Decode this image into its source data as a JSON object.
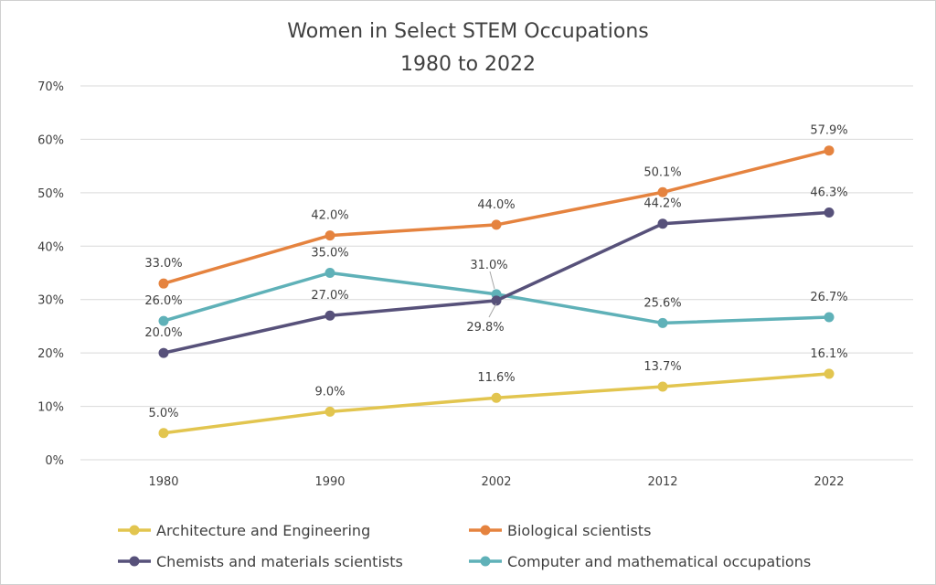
{
  "chart_data": {
    "type": "line",
    "title": [
      "Women in Select STEM Occupations",
      "1980 to 2022"
    ],
    "xlabel": "",
    "ylabel": "",
    "categories": [
      "1980",
      "1990",
      "2002",
      "2012",
      "2022"
    ],
    "ylim": [
      0,
      70
    ],
    "yticks": [
      0,
      10,
      20,
      30,
      40,
      50,
      60,
      70
    ],
    "ytick_labels": [
      "0%",
      "10%",
      "20%",
      "30%",
      "40%",
      "50%",
      "60%",
      "70%"
    ],
    "grid": true,
    "legend_position": "bottom",
    "series": [
      {
        "name": "Architecture and Engineering",
        "color": "#E2C54F",
        "values": [
          5.0,
          9.0,
          11.6,
          13.7,
          16.1
        ],
        "labels": [
          "5.0%",
          "9.0%",
          "11.6%",
          "13.7%",
          "16.1%"
        ]
      },
      {
        "name": "Biological scientists",
        "color": "#E5833F",
        "values": [
          33.0,
          42.0,
          44.0,
          50.1,
          57.9
        ],
        "labels": [
          "33.0%",
          "42.0%",
          "44.0%",
          "50.1%",
          "57.9%"
        ]
      },
      {
        "name": "Chemists and materials scientists",
        "color": "#57517A",
        "values": [
          20.0,
          27.0,
          29.8,
          44.2,
          46.3
        ],
        "labels": [
          "20.0%",
          "27.0%",
          "29.8%",
          "44.2%",
          "46.3%"
        ]
      },
      {
        "name": "Computer and mathematical occupations",
        "color": "#5FB1B8",
        "values": [
          26.0,
          35.0,
          31.0,
          25.6,
          26.7
        ],
        "labels": [
          "26.0%",
          "35.0%",
          "31.0%",
          "25.6%",
          "26.7%"
        ]
      }
    ]
  }
}
